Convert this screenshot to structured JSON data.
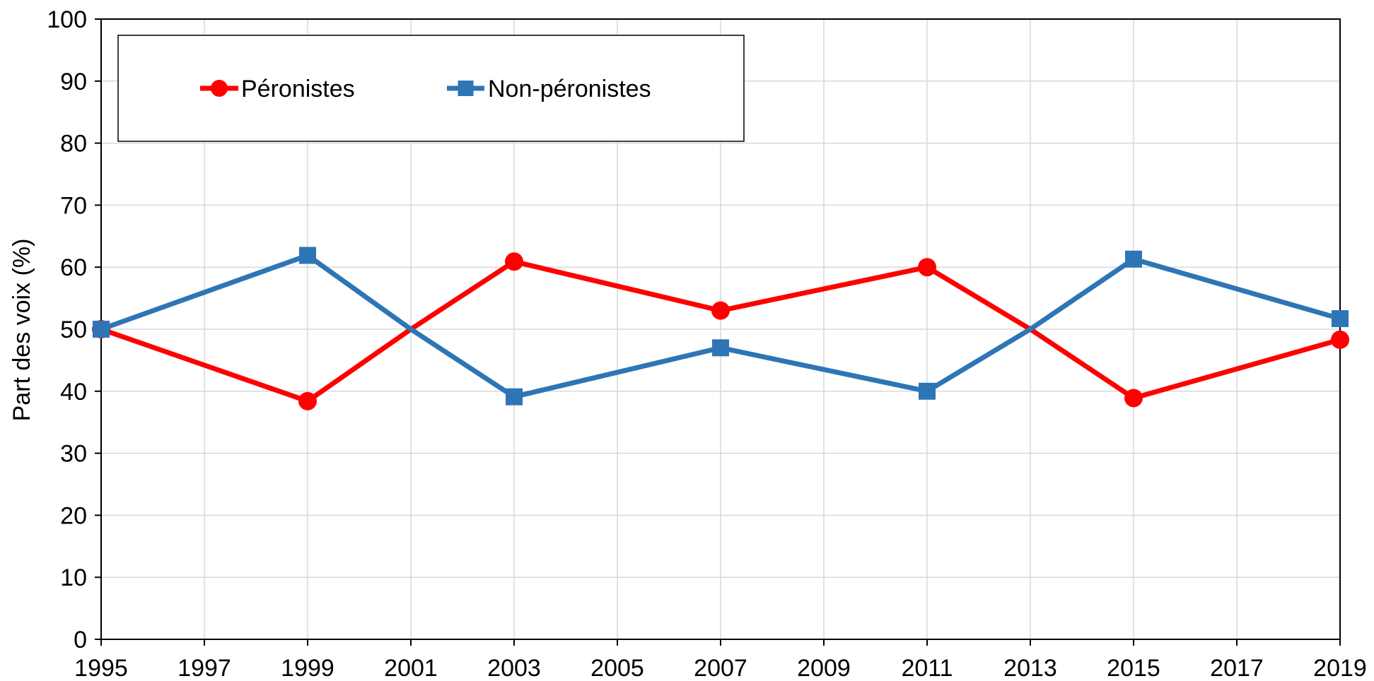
{
  "chart_data": {
    "type": "line",
    "title": "",
    "xlabel": "",
    "ylabel": "Part des voix (%)",
    "xlim": [
      1995,
      2019
    ],
    "ylim": [
      0,
      100
    ],
    "x_ticks": [
      1995,
      1997,
      1999,
      2001,
      2003,
      2005,
      2007,
      2009,
      2011,
      2013,
      2015,
      2017,
      2019
    ],
    "y_ticks": [
      0,
      10,
      20,
      30,
      40,
      50,
      60,
      70,
      80,
      90,
      100
    ],
    "grid": true,
    "legend_position": "top-left",
    "series": [
      {
        "name": "Péronistes",
        "color": "#ff0000",
        "marker": "circle",
        "x": [
          1995,
          1999,
          2001,
          2003,
          2007,
          2011,
          2013,
          2015,
          2019
        ],
        "y": [
          50.0,
          38.4,
          50.0,
          60.9,
          53.0,
          60.0,
          50.0,
          38.9,
          48.3
        ],
        "markers": [
          true,
          true,
          false,
          true,
          true,
          true,
          false,
          true,
          true
        ]
      },
      {
        "name": "Non-péronistes",
        "color": "#2e75b6",
        "marker": "square",
        "x": [
          1995,
          1999,
          2001,
          2003,
          2007,
          2011,
          2013,
          2015,
          2019
        ],
        "y": [
          50.0,
          61.9,
          50.0,
          39.1,
          47.0,
          40.0,
          50.0,
          61.3,
          51.7
        ],
        "markers": [
          true,
          true,
          false,
          true,
          true,
          true,
          false,
          true,
          true
        ]
      }
    ]
  }
}
